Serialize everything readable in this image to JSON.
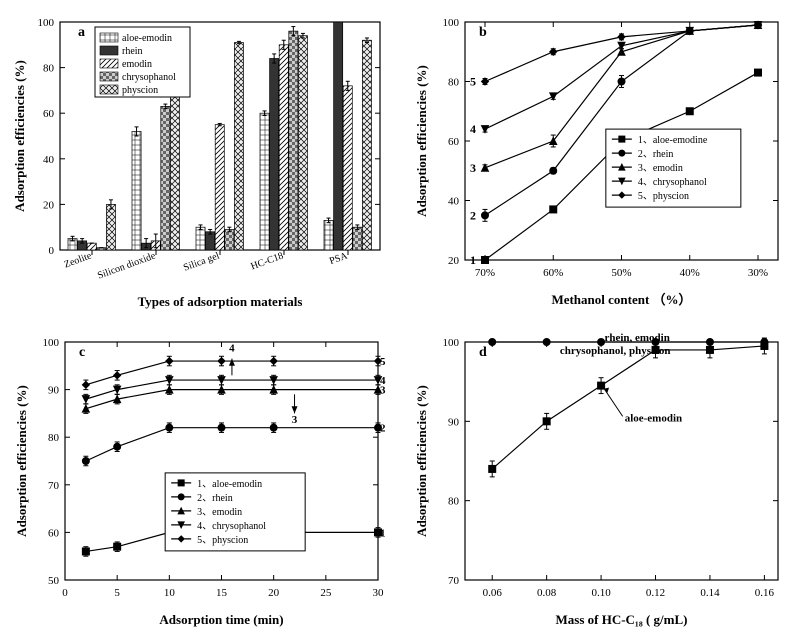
{
  "panel_a": {
    "type": "bar",
    "letter": "a",
    "xlabel": "Types of adsorption materials",
    "ylabel": "Adsorption efficiencies (%)",
    "ylim": [
      0,
      100
    ],
    "ytick_step": 20,
    "categories": [
      "Zeolite",
      "Silicon dioxide",
      "Silica gel",
      "HC-C18",
      "PSA"
    ],
    "series": [
      {
        "name": "aloe-emodin",
        "pattern": "grid",
        "values": [
          5,
          52,
          10,
          60,
          13
        ],
        "err": [
          1,
          2,
          1,
          1,
          1
        ]
      },
      {
        "name": "rhein",
        "pattern": "solid",
        "values": [
          4,
          3,
          8,
          84,
          100
        ],
        "err": [
          1,
          2,
          1,
          2,
          0
        ]
      },
      {
        "name": "emodin",
        "pattern": "diag",
        "values": [
          3,
          4,
          55,
          90,
          72
        ],
        "err": [
          0,
          3,
          0.5,
          2,
          2
        ]
      },
      {
        "name": "chrysophanol",
        "pattern": "checker",
        "values": [
          1,
          63,
          9,
          96,
          10
        ],
        "err": [
          0,
          1,
          1,
          2,
          1
        ]
      },
      {
        "name": "physcion",
        "pattern": "cross",
        "values": [
          20,
          91,
          91,
          94,
          92
        ],
        "err": [
          2,
          1,
          0.5,
          1,
          1
        ]
      }
    ],
    "colors": {
      "bg": "#ffffff",
      "line": "#000000",
      "fill": "#e8e8e8"
    },
    "bar_group_width": 0.75,
    "legend_pos": "upper-left"
  },
  "panel_b": {
    "type": "line",
    "letter": "b",
    "xlabel": "Methanol content （%）",
    "ylabel": "Adsorption efficiencies (%)",
    "ylim": [
      20,
      100
    ],
    "ytick_step": 20,
    "x_categories": [
      "70%",
      "60%",
      "50%",
      "40%",
      "30%"
    ],
    "x_reversed_note": "x axis reversed high→low",
    "series": [
      {
        "name": "aloe-emodine",
        "num": "1",
        "marker": "square",
        "values": [
          20,
          37,
          60,
          70,
          83
        ],
        "err": [
          1,
          1,
          1,
          1,
          1
        ]
      },
      {
        "name": "rhein",
        "num": "2",
        "marker": "circle",
        "values": [
          35,
          50,
          80,
          97,
          99
        ],
        "err": [
          2,
          1,
          2,
          1,
          1
        ]
      },
      {
        "name": "emodin",
        "num": "3",
        "marker": "uptri",
        "values": [
          51,
          60,
          90,
          97,
          99
        ],
        "err": [
          1,
          2,
          1,
          1,
          1
        ]
      },
      {
        "name": "chrysophanol",
        "num": "4",
        "marker": "downtri",
        "values": [
          64,
          75,
          92,
          97,
          99
        ],
        "err": [
          1,
          1,
          1,
          1,
          1
        ]
      },
      {
        "name": "physcion",
        "num": "5",
        "marker": "diamond",
        "values": [
          80,
          90,
          95,
          97,
          99
        ],
        "err": [
          1,
          1,
          1,
          1,
          1
        ]
      }
    ],
    "left_labels": [
      "5",
      "4",
      "3",
      "2",
      "1"
    ],
    "legend_pos": "center-right",
    "colors": {
      "bg": "#ffffff",
      "line": "#000000"
    }
  },
  "panel_c": {
    "type": "line",
    "letter": "c",
    "xlabel": "Adsorption time (min)",
    "ylabel": "Adsorption efficiencies (%)",
    "ylim": [
      50,
      100
    ],
    "ytick_step": 10,
    "xlim": [
      0,
      30
    ],
    "xtick_step": 5,
    "x_points": [
      2,
      5,
      10,
      15,
      20,
      30
    ],
    "series": [
      {
        "name": "aloe-emodin",
        "num": "1",
        "marker": "square",
        "values": [
          56,
          57,
          60,
          60,
          60,
          60
        ],
        "err": [
          1,
          1,
          1,
          1,
          1,
          1
        ]
      },
      {
        "name": "rhein",
        "num": "2",
        "marker": "circle",
        "values": [
          75,
          78,
          82,
          82,
          82,
          82
        ],
        "err": [
          1,
          1,
          1,
          1,
          1,
          1
        ]
      },
      {
        "name": "emodin",
        "num": "3",
        "marker": "uptri",
        "values": [
          86,
          88,
          90,
          90,
          90,
          90
        ],
        "err": [
          1,
          1,
          1,
          1,
          1,
          1
        ]
      },
      {
        "name": "chrysophanol",
        "num": "4",
        "marker": "downtri",
        "values": [
          88,
          90,
          92,
          92,
          92,
          92
        ],
        "err": [
          1,
          1,
          1,
          1,
          1,
          1
        ]
      },
      {
        "name": "physcion",
        "num": "5",
        "marker": "diamond",
        "values": [
          91,
          93,
          96,
          96,
          96,
          96
        ],
        "err": [
          1,
          1,
          1,
          1,
          1,
          1
        ]
      }
    ],
    "inline_labels": [
      "1",
      "2",
      "3",
      "4",
      "5"
    ],
    "legend_pos": "lower-center",
    "colors": {
      "bg": "#ffffff",
      "line": "#000000"
    }
  },
  "panel_d": {
    "type": "line",
    "letter": "d",
    "xlabel": "Mass of HC-C₁₈ ( g/mL)",
    "ylabel": "Adsorption efficiencies (%)",
    "ylim": [
      70,
      100
    ],
    "ytick_step": 10,
    "xlim": [
      0.05,
      0.165
    ],
    "xtick_step": 0.02,
    "x_start": 0.06,
    "x_points": [
      0.06,
      0.08,
      0.1,
      0.12,
      0.14,
      0.16
    ],
    "series": [
      {
        "name": "rhein, emodin",
        "marker": "circle",
        "values": [
          100,
          100,
          100,
          100,
          100,
          100
        ],
        "err": [
          0,
          0,
          0,
          0,
          0,
          0
        ]
      },
      {
        "name": "chrysophanol, physcion",
        "marker": "",
        "values": [],
        "err": []
      },
      {
        "name": "aloe-emodin",
        "marker": "square",
        "values": [
          84,
          90,
          94.5,
          99,
          99,
          99.5
        ],
        "err": [
          1,
          1,
          1,
          1,
          1,
          1
        ]
      }
    ],
    "top_annotation_1": "rhein, emodin",
    "top_annotation_2": "chrysophanol, physcion",
    "aloe_label": "aloe-emodin",
    "colors": {
      "bg": "#ffffff",
      "line": "#000000"
    }
  }
}
